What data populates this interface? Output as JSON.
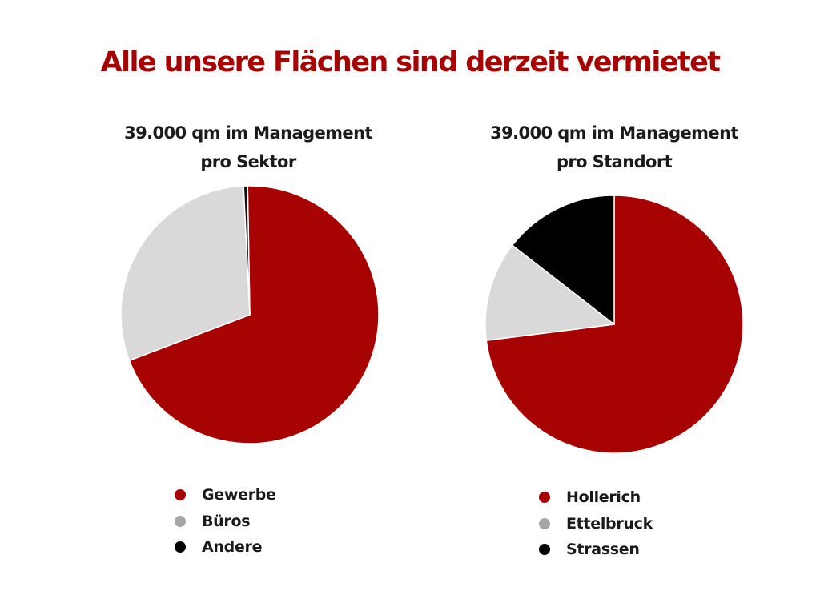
{
  "page": {
    "title": "Alle unsere Flächen sind derzeit vermietet"
  },
  "chart_data": [
    {
      "type": "pie",
      "title_line1": "39.000 qm im Management",
      "title_line2": "pro Sektor",
      "legend_position": "bottom",
      "categories": [
        "Gewerbe",
        "Büros",
        "Andere"
      ],
      "values": [
        69.5,
        30.0,
        0.5
      ],
      "colors": [
        "#a80303",
        "#d9d9d9",
        "#111111"
      ],
      "legend_colors": [
        "#a80303",
        "#a6a6a6",
        "#000000"
      ]
    },
    {
      "type": "pie",
      "title_line1": "39.000 qm im Management",
      "title_line2": "pro Standort",
      "legend_position": "bottom",
      "categories": [
        "Hollerich",
        "Ettelbruck",
        "Strassen"
      ],
      "values": [
        73.0,
        12.5,
        14.5
      ],
      "colors": [
        "#a80303",
        "#d9d9d9",
        "#000000"
      ],
      "legend_colors": [
        "#a80303",
        "#a6a6a6",
        "#000000"
      ]
    }
  ]
}
